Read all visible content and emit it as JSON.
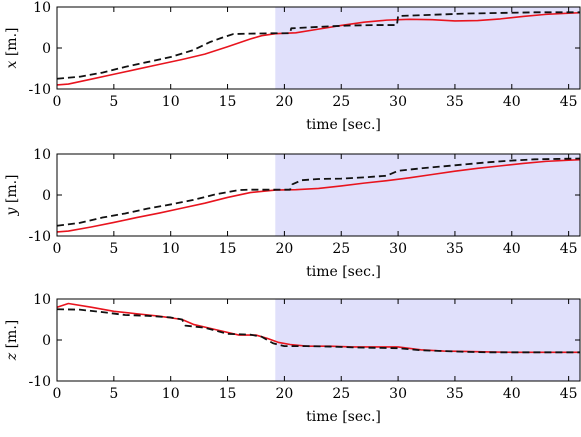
{
  "chart_data": [
    {
      "type": "line",
      "xlabel": "time [sec.]",
      "ylabel_var": "x",
      "ylabel_unit": "[m.]",
      "xlim": [
        0,
        46
      ],
      "ylim": [
        -10,
        10
      ],
      "xticks": [
        0,
        5,
        10,
        15,
        20,
        25,
        30,
        35,
        40,
        45
      ],
      "yticks": [
        -10,
        0,
        10
      ],
      "shaded_region": {
        "from": 19.2,
        "to": 46,
        "color": "#e0e0fb"
      },
      "grid": false,
      "series": [
        {
          "style": "solid",
          "color": "#e8141e",
          "x": [
            0,
            1,
            3,
            5,
            7,
            9,
            11,
            13,
            15,
            17,
            18,
            19.2,
            21,
            23,
            25,
            27,
            29,
            31,
            33,
            35,
            37,
            39,
            41,
            43,
            45,
            46
          ],
          "y": [
            -9,
            -8.8,
            -7.6,
            -6.4,
            -5.2,
            -4.0,
            -2.8,
            -1.5,
            0.3,
            2.2,
            3.0,
            3.5,
            3.7,
            4.6,
            5.5,
            6.3,
            6.8,
            7.0,
            6.9,
            6.6,
            6.7,
            7.1,
            7.7,
            8.2,
            8.5,
            8.6
          ]
        },
        {
          "style": "dashed",
          "color": "#111111",
          "x": [
            0,
            2,
            4,
            6,
            8,
            10,
            12,
            13.5,
            14.5,
            15.5,
            17,
            19,
            20.5,
            20.6,
            22,
            24,
            26,
            28,
            29.9,
            30,
            32,
            34,
            36,
            38,
            40,
            42,
            44,
            46
          ],
          "y": [
            -7.5,
            -7.0,
            -6.0,
            -4.6,
            -3.4,
            -2.2,
            -0.5,
            1.5,
            2.5,
            3.4,
            3.5,
            3.6,
            3.6,
            4.8,
            5.0,
            5.3,
            5.5,
            5.6,
            5.6,
            7.8,
            8.0,
            8.2,
            8.4,
            8.5,
            8.6,
            8.7,
            8.7,
            8.7
          ]
        }
      ]
    },
    {
      "type": "line",
      "xlabel": "time [sec.]",
      "ylabel_var": "y",
      "ylabel_unit": "[m.]",
      "xlim": [
        0,
        46
      ],
      "ylim": [
        -10,
        10
      ],
      "xticks": [
        0,
        5,
        10,
        15,
        20,
        25,
        30,
        35,
        40,
        45
      ],
      "yticks": [
        -10,
        0,
        10
      ],
      "shaded_region": {
        "from": 19.2,
        "to": 46,
        "color": "#e0e0fb"
      },
      "grid": false,
      "series": [
        {
          "style": "solid",
          "color": "#e8141e",
          "x": [
            0,
            1,
            3,
            5,
            7,
            9,
            11,
            13,
            15,
            17,
            19.2,
            21,
            23,
            25,
            27,
            29,
            31,
            33,
            35,
            37,
            39,
            41,
            43,
            45,
            46
          ],
          "y": [
            -9,
            -8.8,
            -7.8,
            -6.7,
            -5.5,
            -4.4,
            -3.2,
            -2.0,
            -0.6,
            0.6,
            1.2,
            1.3,
            1.6,
            2.2,
            2.9,
            3.5,
            4.2,
            5.0,
            5.8,
            6.5,
            7.1,
            7.7,
            8.2,
            8.5,
            8.6
          ]
        },
        {
          "style": "dashed",
          "color": "#111111",
          "x": [
            0,
            2,
            4,
            6,
            8,
            10,
            12,
            14,
            16,
            17,
            19,
            20.5,
            20.7,
            21.5,
            23,
            25,
            27,
            29,
            30,
            32,
            34,
            36,
            38,
            40,
            42,
            44,
            46
          ],
          "y": [
            -7.5,
            -6.8,
            -5.5,
            -4.5,
            -3.3,
            -2.3,
            -1.2,
            0.2,
            1.2,
            1.3,
            1.3,
            1.3,
            2.6,
            3.6,
            3.9,
            4.0,
            4.3,
            4.7,
            5.9,
            6.5,
            7.0,
            7.5,
            8.0,
            8.4,
            8.7,
            8.8,
            8.9
          ]
        }
      ]
    },
    {
      "type": "line",
      "xlabel": "time [sec.]",
      "ylabel_var": "z",
      "ylabel_unit": "[m.]",
      "xlim": [
        0,
        46
      ],
      "ylim": [
        -10,
        10
      ],
      "xticks": [
        0,
        5,
        10,
        15,
        20,
        25,
        30,
        35,
        40,
        45
      ],
      "yticks": [
        -10,
        0,
        10
      ],
      "shaded_region": {
        "from": 19.2,
        "to": 46,
        "color": "#e0e0fb"
      },
      "grid": false,
      "series": [
        {
          "style": "solid",
          "color": "#e8141e",
          "x": [
            0,
            1,
            3,
            5,
            7,
            9,
            11,
            12,
            14,
            16,
            17.5,
            18.5,
            19.5,
            20.5,
            22,
            24,
            26,
            28,
            30,
            32,
            34,
            36,
            38,
            40,
            42,
            44,
            46
          ],
          "y": [
            8,
            8.9,
            8.0,
            7.0,
            6.4,
            5.8,
            5.0,
            3.8,
            2.5,
            1.2,
            1.2,
            0.4,
            -0.6,
            -1.1,
            -1.5,
            -1.5,
            -1.7,
            -1.7,
            -1.7,
            -2.4,
            -2.7,
            -2.8,
            -2.9,
            -3.0,
            -3.0,
            -3.0,
            -3.0
          ]
        },
        {
          "style": "dashed",
          "color": "#111111",
          "x": [
            0,
            2,
            4,
            6,
            8,
            10,
            11,
            11.3,
            13,
            15,
            17,
            18,
            19,
            20,
            22,
            24,
            26,
            28,
            30,
            32,
            34,
            36,
            38,
            40,
            42,
            44,
            46
          ],
          "y": [
            7.5,
            7.4,
            6.8,
            6.1,
            5.9,
            5.5,
            5.0,
            3.5,
            3.0,
            1.5,
            1.3,
            0.8,
            -0.8,
            -1.5,
            -1.5,
            -1.6,
            -1.8,
            -1.9,
            -2.0,
            -2.5,
            -2.7,
            -2.9,
            -3.0,
            -3.0,
            -3.0,
            -3.0,
            -3.0
          ]
        }
      ]
    }
  ]
}
